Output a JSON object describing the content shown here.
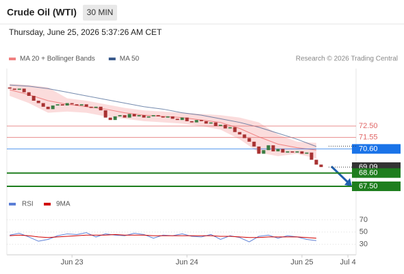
{
  "chart_data": {
    "type": "candlestick",
    "title": "Crude Oil (WTI)",
    "timeframe": "30 MIN",
    "timestamp": "Thursday, June 25, 2026 5:37:26 AM CET",
    "credit": "Research © 2026 Trading Central",
    "legend": [
      {
        "name": "MA 20 + Bollinger Bands",
        "color": "#f08080"
      },
      {
        "name": "MA 50",
        "color": "#3a5a8c"
      }
    ],
    "up_color": "#3a7d44",
    "down_color": "#a83232",
    "x": [
      -13,
      -12,
      -11,
      -10,
      -9,
      -8,
      -7,
      -6,
      -5,
      -4,
      -3,
      -2,
      -1,
      0,
      1,
      2,
      3,
      4,
      5,
      6,
      7,
      8,
      9,
      10,
      11,
      12,
      13,
      14,
      15,
      16,
      17,
      18,
      19,
      20,
      21,
      22,
      23,
      24,
      25,
      26,
      27,
      28,
      29,
      30,
      31,
      32,
      33,
      34,
      35,
      36,
      37,
      38,
      39,
      40,
      41,
      42,
      43,
      44,
      45,
      46,
      47,
      48,
      49,
      50,
      51,
      52
    ],
    "open": [
      75.7,
      75.6,
      75.5,
      75.6,
      75.3,
      75.0,
      74.6,
      74.4,
      74.1,
      73.9,
      74.2,
      74.3,
      74.2,
      74.4,
      74.3,
      74.2,
      74.3,
      74.1,
      74.0,
      74.1,
      73.8,
      73.2,
      73.0,
      73.3,
      73.4,
      73.2,
      73.5,
      73.3,
      73.4,
      73.2,
      73.3,
      73.4,
      73.3,
      73.2,
      73.3,
      73.1,
      73.0,
      73.2,
      72.9,
      72.8,
      73.0,
      72.9,
      72.7,
      72.8,
      72.5,
      72.6,
      72.3,
      72.4,
      72.0,
      71.8,
      71.5,
      71.2,
      70.8,
      70.2,
      70.5,
      70.9,
      70.4,
      70.6,
      70.3,
      70.4,
      70.3,
      70.4,
      70.2,
      70.3,
      69.7,
      69.3
    ],
    "close": [
      75.6,
      75.5,
      75.6,
      75.3,
      75.0,
      74.6,
      74.4,
      74.1,
      73.9,
      74.2,
      74.3,
      74.2,
      74.4,
      74.3,
      74.2,
      74.3,
      74.1,
      74.0,
      74.1,
      73.8,
      73.2,
      73.0,
      73.3,
      73.4,
      73.2,
      73.5,
      73.3,
      73.4,
      73.2,
      73.3,
      73.4,
      73.3,
      73.2,
      73.3,
      73.1,
      73.0,
      73.2,
      72.9,
      72.8,
      73.0,
      72.9,
      72.7,
      72.8,
      72.5,
      72.6,
      72.3,
      72.4,
      72.0,
      71.8,
      71.5,
      71.2,
      70.8,
      70.2,
      70.5,
      70.9,
      70.4,
      70.6,
      70.3,
      70.4,
      70.3,
      70.4,
      70.2,
      70.3,
      69.7,
      69.3,
      69.1
    ],
    "xlim": [
      -13.6,
      59.3
    ],
    "xticks": [
      {
        "value": 0,
        "label": "Jun 23"
      },
      {
        "value": 24,
        "label": "Jun 24"
      },
      {
        "value": 48,
        "label": "Jun 25"
      },
      {
        "value": 57.6,
        "label": "Jul 4"
      }
    ],
    "ylim": [
      66.76,
      77.27
    ],
    "overlay": {
      "x": [
        -13,
        -9,
        -5,
        -1,
        3,
        7,
        11,
        15,
        19,
        23,
        27,
        31,
        35,
        39,
        43,
        47,
        51
      ],
      "ma20": [
        75.5,
        75.1,
        74.6,
        74.3,
        74.1,
        73.9,
        73.6,
        73.4,
        73.3,
        73.2,
        73.0,
        72.8,
        72.3,
        71.6,
        71.0,
        70.7,
        70.5
      ],
      "upper": [
        76.0,
        75.9,
        75.7,
        74.8,
        74.6,
        74.3,
        74.0,
        73.8,
        73.7,
        73.6,
        73.5,
        73.4,
        73.2,
        72.8,
        71.8,
        71.2,
        71.1
      ],
      "lower": [
        75.0,
        74.4,
        73.6,
        73.7,
        73.6,
        73.3,
        73.1,
        72.9,
        72.8,
        72.7,
        72.5,
        72.2,
        71.4,
        70.3,
        70.0,
        70.2,
        69.8
      ],
      "ma50": [
        75.9,
        75.8,
        75.6,
        75.3,
        75.0,
        74.7,
        74.4,
        74.1,
        73.9,
        73.6,
        73.4,
        73.1,
        72.8,
        72.4,
        71.9,
        71.4,
        70.8
      ]
    },
    "levels": [
      {
        "value": 72.5,
        "label": "72.50",
        "color": "#e06666",
        "box": false,
        "line": "solid"
      },
      {
        "value": 71.55,
        "label": "71.55",
        "color": "#e06666",
        "box": false,
        "line": "solid"
      },
      {
        "value": 70.6,
        "label": "70.60",
        "color": "#1a73e8",
        "box": true,
        "line": "solid"
      },
      {
        "value": 69.09,
        "label": "69.09",
        "color": "#333333",
        "box": true,
        "line": "dotted"
      },
      {
        "value": 68.6,
        "label": "68.60",
        "color": "#1e7e1e",
        "box": true,
        "line": "thick"
      },
      {
        "value": 67.5,
        "label": "67.50",
        "color": "#1e7e1e",
        "box": true,
        "line": "thick"
      }
    ],
    "rsi": {
      "name": "RSI",
      "color": "#5b7fd6",
      "ma_name": "9MA",
      "ma_color": "#d00000",
      "x": [
        -13,
        -11,
        -9,
        -7,
        -5,
        -3,
        -1,
        1,
        3,
        5,
        7,
        9,
        11,
        13,
        15,
        17,
        19,
        21,
        23,
        25,
        27,
        29,
        31,
        33,
        35,
        37,
        39,
        41,
        43,
        45,
        47,
        49,
        51
      ],
      "values": [
        45,
        48,
        42,
        35,
        38,
        44,
        47,
        46,
        49,
        42,
        47,
        45,
        44,
        48,
        46,
        40,
        45,
        44,
        47,
        43,
        42,
        46,
        38,
        44,
        41,
        34,
        43,
        45,
        40,
        44,
        42,
        38,
        36
      ],
      "ma": [
        44,
        45,
        44,
        42,
        41,
        42,
        43,
        44,
        45,
        45,
        45,
        46,
        45,
        45,
        45,
        44,
        44,
        44,
        44,
        44,
        44,
        44,
        43,
        43,
        42,
        41,
        41,
        42,
        42,
        42,
        42,
        41,
        40
      ],
      "ylim": [
        15,
        80
      ],
      "yticks": [
        70,
        50,
        30
      ]
    }
  }
}
